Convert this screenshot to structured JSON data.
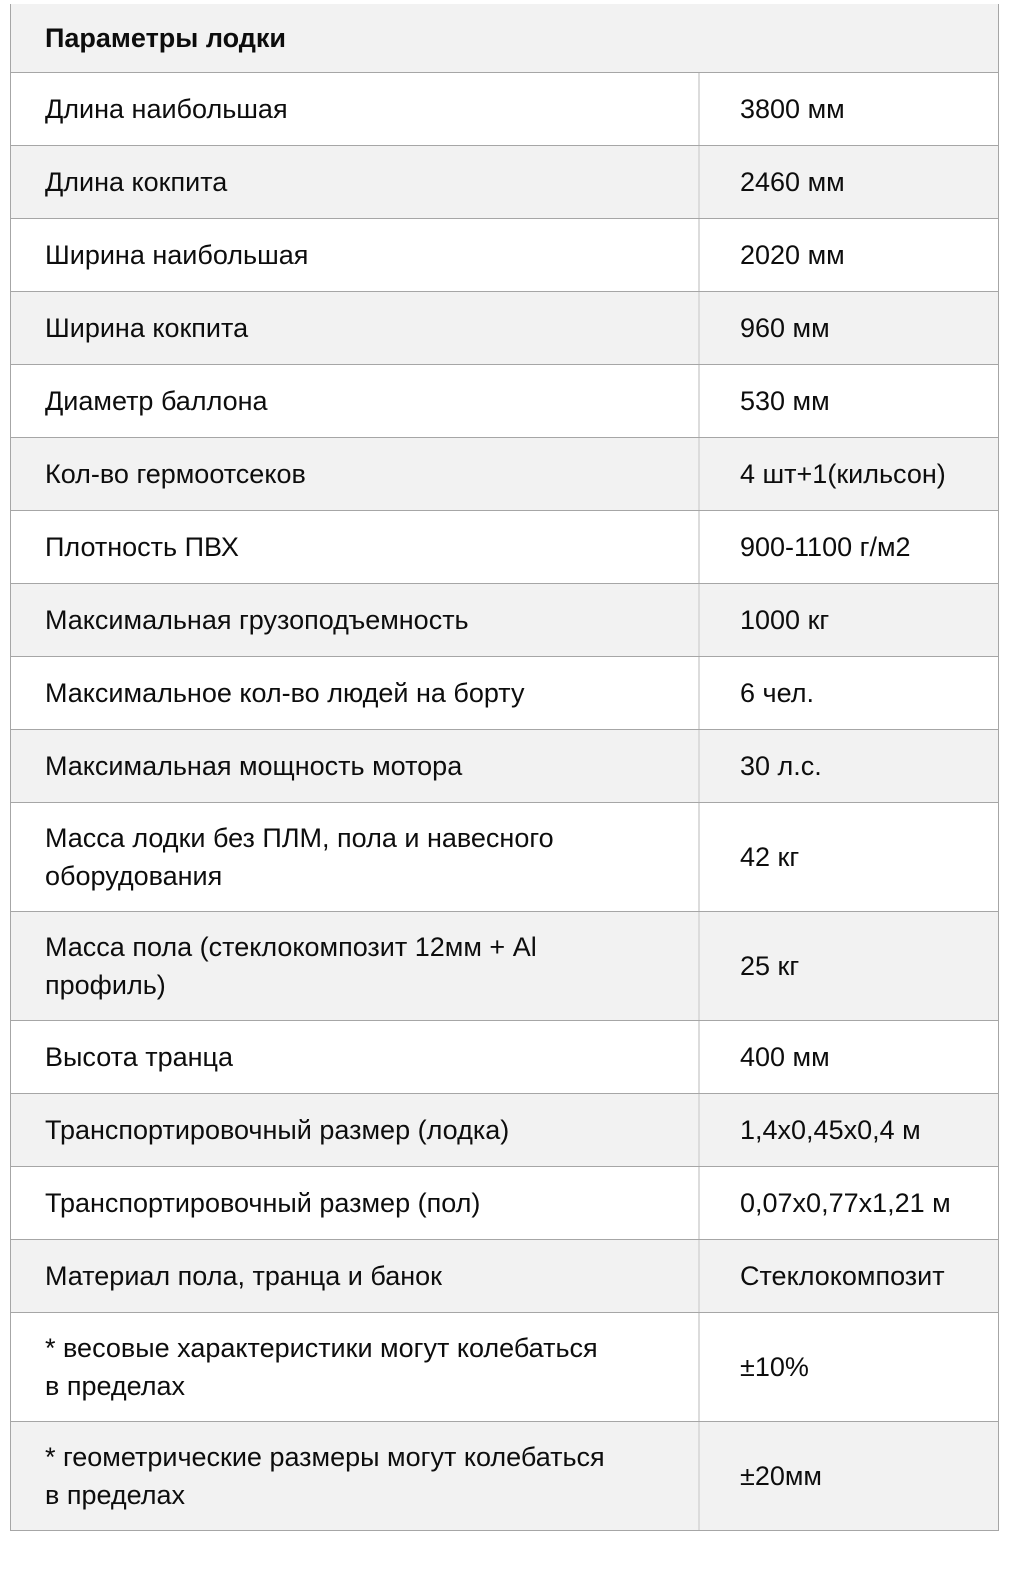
{
  "table": {
    "title": "Параметры лодки",
    "rows": [
      {
        "label": "Длина наибольшая",
        "value": "3800 мм"
      },
      {
        "label": "Длина кокпита",
        "value": "2460 мм"
      },
      {
        "label": "Ширина наибольшая",
        "value": "2020 мм"
      },
      {
        "label": "Ширина кокпита",
        "value": "960 мм"
      },
      {
        "label": "Диаметр баллона",
        "value": "530 мм"
      },
      {
        "label": "Кол-во гермоотсеков",
        "value": "4 шт+1(кильсон)"
      },
      {
        "label": "Плотность ПВХ",
        "value": "900-1100 г/м2"
      },
      {
        "label": "Максимальная грузоподъемность",
        "value": "1000 кг"
      },
      {
        "label": "Максимальное кол-во людей на борту",
        "value": "6 чел."
      },
      {
        "label": "Максимальная мощность мотора",
        "value": "30 л.с."
      },
      {
        "label": "Масса лодки без ПЛМ, пола и навесного\nоборудования",
        "value": "42 кг"
      },
      {
        "label": "Масса пола (стеклокомпозит 12мм + Al\nпрофиль)",
        "value": "25 кг"
      },
      {
        "label": "Высота транца",
        "value": "400 мм"
      },
      {
        "label": "Транспортировочный размер (лодка)",
        "value": "1,4х0,45х0,4 м"
      },
      {
        "label": "Транспортировочный размер (пол)",
        "value": "0,07х0,77х1,21 м"
      },
      {
        "label": "Материал пола, транца и банок",
        "value": "Стеклокомпозит"
      },
      {
        "label": "* весовые характеристики могут колебаться\nв пределах",
        "value": "±10%"
      },
      {
        "label": "* геометрические размеры могут колебаться\nв пределах",
        "value": "±20мм"
      }
    ]
  },
  "colors": {
    "row_alt_background": "#f2f2f2",
    "row_background": "#ffffff",
    "row_border": "#a6a6a6",
    "column_divider": "#dcdcdc",
    "text": "#0d0d0d"
  }
}
